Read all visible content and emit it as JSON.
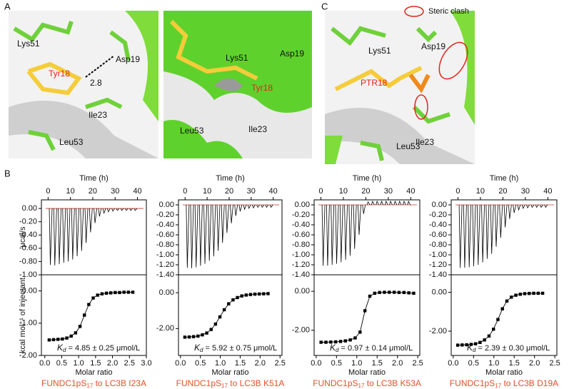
{
  "panel_labels": {
    "a": "A",
    "b": "B",
    "c": "C"
  },
  "panel_a_left": [
    "Lys51",
    "Tyr18",
    "Asp19",
    "2.8",
    "Ile23",
    "Leu53"
  ],
  "panel_a_right": [
    "Lys51",
    "Asp19",
    "Tyr18",
    "Ile23",
    "Leu53"
  ],
  "panel_c": [
    "Lys51",
    "Asp19",
    "PTR18",
    "Ile23",
    "Leu53"
  ],
  "legend_c": "Steric clash",
  "shared_labels": {
    "int_y_label": "kcal mol⁻¹ of injectant"
  },
  "chart_data": [
    {
      "type": "itc",
      "raw": {
        "x_label": "Time (h)",
        "y_label": "μcal/s",
        "color": "#000000",
        "x": [
          1,
          3,
          5,
          7,
          9,
          11,
          13,
          15,
          17,
          19,
          21,
          23,
          25,
          27,
          29,
          31,
          33,
          35,
          37,
          39
        ],
        "values": [
          -0.85,
          -0.86,
          -0.84,
          -0.82,
          -0.8,
          -0.77,
          -0.72,
          -0.64,
          -0.52,
          -0.36,
          -0.22,
          -0.12,
          -0.07,
          -0.05,
          -0.04,
          -0.03,
          -0.03,
          -0.03,
          -0.03,
          -0.03
        ],
        "xlim": [
          -3,
          44
        ],
        "xticks": [
          0,
          10,
          20,
          30,
          40
        ],
        "ylim": [
          -1.0,
          0.13
        ],
        "yticks": [
          {
            "value": 0,
            "label": "0.00"
          },
          {
            "value": -0.2,
            "label": "-0.20"
          },
          {
            "value": -0.4,
            "label": "-0.40"
          },
          {
            "value": -0.6,
            "label": "-0.60"
          },
          {
            "value": -0.8,
            "label": "-0.80"
          },
          {
            "value": -1,
            "label": "-1.00"
          }
        ]
      },
      "integrated": {
        "x_label": "Molar ratio",
        "color": "#000000",
        "x": [
          0.13,
          0.26,
          0.39,
          0.52,
          0.65,
          0.78,
          0.91,
          1.04,
          1.17,
          1.3,
          1.43,
          1.56,
          1.69,
          1.82,
          1.95,
          2.08,
          2.21,
          2.34,
          2.47,
          2.6
        ],
        "values": [
          -1.52,
          -1.51,
          -1.5,
          -1.49,
          -1.46,
          -1.4,
          -1.3,
          -1.1,
          -0.75,
          -0.42,
          -0.22,
          -0.13,
          -0.09,
          -0.07,
          -0.06,
          -0.05,
          -0.05,
          -0.04,
          -0.04,
          -0.04
        ],
        "xlim": [
          -0.1,
          3.0
        ],
        "xticks": [
          {
            "value": 0,
            "label": "0.0"
          },
          0.5,
          {
            "value": 1,
            "label": "1.0"
          },
          1.5,
          {
            "value": 2,
            "label": "2.0"
          },
          2.5,
          {
            "value": 3,
            "label": "3.0"
          }
        ],
        "ylim": [
          -2.0,
          0.5
        ],
        "yticks": [
          {
            "value": 0,
            "label": "0.00"
          },
          {
            "value": -1,
            "label": "-1.00"
          },
          {
            "value": -2,
            "label": "-2.00"
          }
        ]
      },
      "kd": {
        "symbol": "K",
        "sub": "d",
        "text": " = 4.85 ± 0.25 μmol/L"
      },
      "caption": {
        "prefix": "FUNDC1pS",
        "sub": "17",
        "suffix": " to LC3B I23A"
      }
    },
    {
      "type": "itc",
      "raw": {
        "x_label": "Time (h)",
        "color": "#000000",
        "x": [
          1,
          3,
          5,
          7,
          9,
          11,
          13,
          15,
          17,
          19,
          21,
          23,
          25,
          27,
          29,
          31,
          33,
          35,
          37,
          39
        ],
        "values": [
          -1.26,
          -1.27,
          -1.25,
          -1.22,
          -1.18,
          -1.12,
          -1.03,
          -0.92,
          -0.76,
          -0.56,
          -0.37,
          -0.22,
          -0.13,
          -0.09,
          -0.07,
          -0.06,
          -0.05,
          -0.05,
          -0.05,
          -0.05
        ],
        "xlim": [
          -3,
          44
        ],
        "xticks": [
          0,
          10,
          20,
          30,
          40
        ],
        "ylim": [
          -1.4,
          0.1
        ],
        "yticks": [
          {
            "value": 0,
            "label": "0.00"
          },
          {
            "value": -0.2,
            "label": "-0.20"
          },
          {
            "value": -0.4,
            "label": "-0.40"
          },
          {
            "value": -0.6,
            "label": "-0.60"
          },
          {
            "value": -0.8,
            "label": "-0.80"
          },
          {
            "value": -1,
            "label": "-1.00"
          },
          {
            "value": -1.2,
            "label": "-1.20"
          },
          {
            "value": -1.4,
            "label": "-1.40"
          }
        ]
      },
      "integrated": {
        "x_label": "Molar ratio",
        "color": "#000000",
        "x": [
          0.11,
          0.22,
          0.33,
          0.44,
          0.55,
          0.66,
          0.77,
          0.88,
          0.99,
          1.1,
          1.21,
          1.32,
          1.43,
          1.54,
          1.65,
          1.76,
          1.87,
          1.98,
          2.09,
          2.2
        ],
        "values": [
          -2.48,
          -2.47,
          -2.45,
          -2.42,
          -2.35,
          -2.25,
          -2.05,
          -1.75,
          -1.35,
          -0.95,
          -0.62,
          -0.4,
          -0.27,
          -0.18,
          -0.13,
          -0.1,
          -0.08,
          -0.07,
          -0.06,
          -0.05
        ],
        "xlim": [
          -0.05,
          2.55
        ],
        "xticks": [
          {
            "value": 0,
            "label": "0.0"
          },
          0.5,
          {
            "value": 1,
            "label": "1.0"
          },
          1.5,
          {
            "value": 2,
            "label": "2.0"
          },
          2.5
        ],
        "ylim": [
          -3.5,
          1.0
        ],
        "yticks": [
          {
            "value": 0,
            "label": "0.00"
          },
          {
            "value": -2,
            "label": "-2.00"
          }
        ]
      },
      "kd": {
        "symbol": "K",
        "sub": "d",
        "text": " = 5.92 ± 0.75 μmol/L"
      },
      "caption": {
        "prefix": "FUNDC1pS",
        "sub": "17",
        "suffix": " to LC3B K51A"
      }
    },
    {
      "type": "itc",
      "raw": {
        "x_label": "Time (h)",
        "color": "#000000",
        "x": [
          1,
          3,
          5,
          7,
          9,
          11,
          13,
          15,
          17,
          19,
          21,
          23,
          25,
          27,
          29,
          31,
          33,
          35,
          37,
          39
        ],
        "values": [
          -1.22,
          -1.22,
          -1.2,
          -1.18,
          -1.15,
          -1.1,
          -1.02,
          -0.88,
          -0.6,
          -0.18,
          0.06,
          0.07,
          0.07,
          0.07,
          0.07,
          0.07,
          0.07,
          0.07,
          0.07,
          0.07
        ],
        "xlim": [
          -3,
          44
        ],
        "xticks": [
          0,
          10,
          20,
          30,
          40
        ],
        "ylim": [
          -1.4,
          0.1
        ],
        "yticks": [
          {
            "value": 0,
            "label": "0.00"
          },
          {
            "value": -0.2,
            "label": "-0.20"
          },
          {
            "value": -0.4,
            "label": "-0.40"
          },
          {
            "value": -0.6,
            "label": "-0.60"
          },
          {
            "value": -0.8,
            "label": "-0.80"
          },
          {
            "value": -1,
            "label": "-1.00"
          },
          {
            "value": -1.2,
            "label": "-1.20"
          },
          {
            "value": -1.4,
            "label": "-1.40"
          }
        ]
      },
      "integrated": {
        "x_label": "Molar ratio",
        "color": "#000000",
        "x": [
          0.12,
          0.24,
          0.36,
          0.48,
          0.6,
          0.72,
          0.84,
          0.96,
          1.08,
          1.2,
          1.32,
          1.44,
          1.56,
          1.68,
          1.8,
          1.92,
          2.04,
          2.16,
          2.28,
          2.4
        ],
        "values": [
          -2.62,
          -2.62,
          -2.61,
          -2.6,
          -2.58,
          -2.55,
          -2.5,
          -2.4,
          -2.1,
          -1.0,
          -0.25,
          -0.1,
          -0.06,
          -0.05,
          -0.05,
          -0.05,
          -0.06,
          -0.06,
          -0.08,
          -0.1
        ],
        "xlim": [
          -0.05,
          2.55
        ],
        "xticks": [
          {
            "value": 0,
            "label": "0.0"
          },
          0.5,
          {
            "value": 1,
            "label": "1.0"
          },
          1.5,
          {
            "value": 2,
            "label": "2.0"
          },
          2.5
        ],
        "ylim": [
          -3.3,
          0.85
        ],
        "yticks": [
          {
            "value": 0,
            "label": "0.00"
          },
          {
            "value": -2,
            "label": "-2.00"
          }
        ]
      },
      "kd": {
        "symbol": "K",
        "sub": "d",
        "text": " = 0.97 ± 0.14 μmol/L"
      },
      "caption": {
        "prefix": "FUNDC1pS",
        "sub": "17",
        "suffix": " to LC3B K53A"
      }
    },
    {
      "type": "itc",
      "raw": {
        "x_label": "Time (h)",
        "color": "#000000",
        "x": [
          1,
          3,
          5,
          7,
          9,
          11,
          13,
          15,
          17,
          19,
          21,
          23,
          25,
          27,
          29,
          31,
          33,
          35,
          37,
          39
        ],
        "values": [
          -1.26,
          -1.26,
          -1.25,
          -1.23,
          -1.2,
          -1.15,
          -1.08,
          -0.98,
          -0.84,
          -0.66,
          -0.45,
          -0.28,
          -0.16,
          -0.1,
          -0.07,
          -0.06,
          -0.05,
          -0.05,
          -0.05,
          -0.05
        ],
        "xlim": [
          -3,
          44
        ],
        "xticks": [
          0,
          10,
          20,
          30,
          40
        ],
        "ylim": [
          -1.4,
          0.1
        ],
        "yticks": [
          {
            "value": 0,
            "label": "0.00"
          },
          {
            "value": -0.2,
            "label": "-0.20"
          },
          {
            "value": -0.4,
            "label": "-0.40"
          },
          {
            "value": -0.6,
            "label": "-0.60"
          },
          {
            "value": -0.8,
            "label": "-0.80"
          },
          {
            "value": -1,
            "label": "-1.00"
          },
          {
            "value": -1.2,
            "label": "-1.20"
          },
          {
            "value": -1.4,
            "label": "-1.40"
          }
        ]
      },
      "integrated": {
        "x_label": "Molar ratio",
        "color": "#000000",
        "x": [
          0.11,
          0.22,
          0.33,
          0.44,
          0.55,
          0.66,
          0.77,
          0.88,
          0.99,
          1.1,
          1.21,
          1.32,
          1.43,
          1.54,
          1.65,
          1.76,
          1.87,
          1.98,
          2.09,
          2.2
        ],
        "values": [
          -2.72,
          -2.71,
          -2.7,
          -2.68,
          -2.65,
          -2.58,
          -2.45,
          -2.25,
          -1.9,
          -1.4,
          -0.85,
          -0.45,
          -0.25,
          -0.15,
          -0.1,
          -0.07,
          -0.06,
          -0.05,
          -0.05,
          -0.05
        ],
        "xlim": [
          -0.05,
          2.55
        ],
        "xticks": [
          {
            "value": 0,
            "label": "0.0"
          },
          0.5,
          {
            "value": 1,
            "label": "1.0"
          },
          1.5,
          {
            "value": 2,
            "label": "2.0"
          },
          2.5
        ],
        "ylim": [
          -3.25,
          0.9
        ],
        "yticks": [
          {
            "value": 0,
            "label": "0.00"
          },
          {
            "value": -2,
            "label": "-2.00"
          }
        ]
      },
      "kd": {
        "symbol": "K",
        "sub": "d",
        "text": " = 2.39 ± 0.30 μmol/L"
      },
      "caption": {
        "prefix": "FUNDC1pS",
        "sub": "17",
        "suffix": " to LC3B D19A"
      }
    }
  ]
}
